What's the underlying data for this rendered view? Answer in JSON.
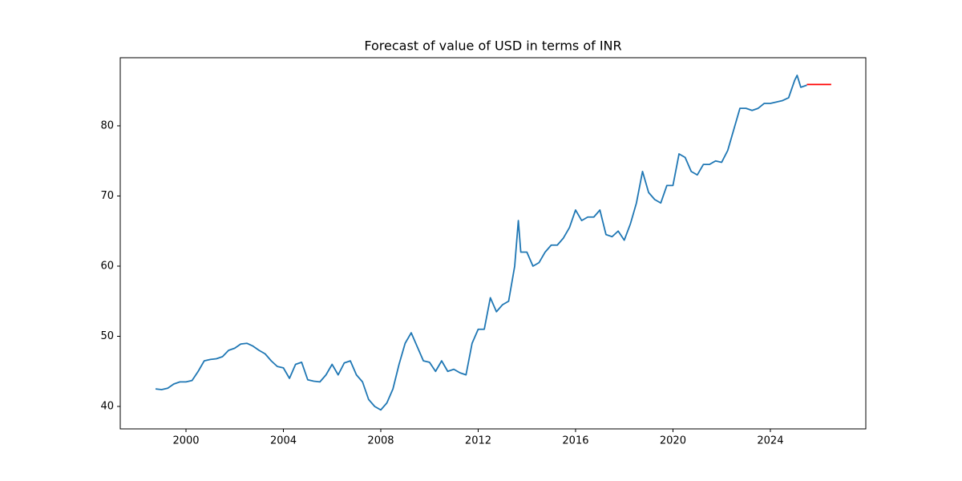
{
  "chart_data": {
    "type": "line",
    "title": "Forecast of value of USD in terms of INR",
    "xlim": [
      1997.3,
      2027.92
    ],
    "ylim": [
      36.8,
      89.71
    ],
    "xticks": [
      2000,
      2004,
      2008,
      2012,
      2016,
      2020,
      2024
    ],
    "yticks": [
      40,
      50,
      60,
      70,
      80
    ],
    "grid": false,
    "series": [
      {
        "color": "#1f77b4",
        "x": [
          1998.75,
          1999.0,
          1999.25,
          1999.5,
          1999.75,
          2000.0,
          2000.25,
          2000.5,
          2000.75,
          2001.0,
          2001.25,
          2001.5,
          2001.75,
          2002.0,
          2002.25,
          2002.5,
          2002.75,
          2003.0,
          2003.25,
          2003.5,
          2003.75,
          2004.0,
          2004.25,
          2004.5,
          2004.75,
          2005.0,
          2005.25,
          2005.5,
          2005.75,
          2006.0,
          2006.25,
          2006.5,
          2006.75,
          2007.0,
          2007.25,
          2007.5,
          2007.75,
          2008.0,
          2008.25,
          2008.5,
          2008.75,
          2009.0,
          2009.25,
          2009.5,
          2009.75,
          2010.0,
          2010.25,
          2010.5,
          2010.75,
          2011.0,
          2011.25,
          2011.5,
          2011.75,
          2012.0,
          2012.25,
          2012.5,
          2012.75,
          2013.0,
          2013.25,
          2013.5,
          2013.65,
          2013.75,
          2014.0,
          2014.25,
          2014.5,
          2014.75,
          2015.0,
          2015.25,
          2015.5,
          2015.75,
          2016.0,
          2016.25,
          2016.5,
          2016.75,
          2017.0,
          2017.25,
          2017.5,
          2017.75,
          2018.0,
          2018.25,
          2018.5,
          2018.75,
          2019.0,
          2019.25,
          2019.5,
          2019.75,
          2020.0,
          2020.25,
          2020.5,
          2020.75,
          2021.0,
          2021.25,
          2021.5,
          2021.75,
          2022.0,
          2022.25,
          2022.5,
          2022.75,
          2023.0,
          2023.25,
          2023.5,
          2023.75,
          2024.0,
          2024.25,
          2024.5,
          2024.75,
          2025.0,
          2025.1,
          2025.25,
          2025.5
        ],
        "values": [
          42.5,
          42.4,
          42.6,
          43.2,
          43.5,
          43.5,
          43.7,
          45,
          46.5,
          46.7,
          46.8,
          47.1,
          48,
          48.3,
          48.9,
          49,
          48.6,
          48,
          47.5,
          46.5,
          45.7,
          45.5,
          44,
          46,
          46.3,
          43.8,
          43.6,
          43.5,
          44.5,
          46,
          44.5,
          46.2,
          46.5,
          44.5,
          43.5,
          41,
          40,
          39.5,
          40.5,
          42.5,
          46,
          49,
          50.5,
          48.5,
          46.5,
          46.3,
          45,
          46.5,
          45,
          45.3,
          44.8,
          44.5,
          49,
          51,
          51,
          55.5,
          53.5,
          54.5,
          55,
          60,
          66.5,
          62,
          62,
          60,
          60.5,
          62,
          63,
          63,
          64,
          65.5,
          68,
          66.5,
          67,
          67,
          68,
          64.5,
          64.2,
          65,
          63.7,
          66,
          69,
          73.5,
          70.5,
          69.5,
          69,
          71.5,
          71.5,
          76,
          75.5,
          73.5,
          73,
          74.5,
          74.5,
          75,
          74.8,
          76.5,
          79.5,
          82.5,
          82.5,
          82.2,
          82.5,
          83.2,
          83.2,
          83.4,
          83.6,
          84,
          86.5,
          87.2,
          85.5,
          85.8
        ]
      },
      {
        "color": "#ff0000",
        "x": [
          2025.5,
          2026.5
        ],
        "values": [
          85.9,
          85.9
        ]
      }
    ]
  }
}
